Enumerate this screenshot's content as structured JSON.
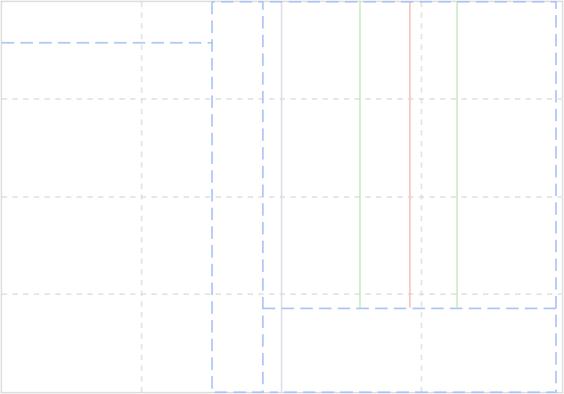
{
  "canvas": {
    "background": "#ffffff",
    "frame_color": "#d9d9d9"
  },
  "colors": {
    "grid": "#d5d5d5",
    "divider": "#d3dbe6",
    "region_outline": "#a9c4f5",
    "guide_green": "#bfe8b8",
    "guide_red": "#f3b9ad"
  },
  "labels": {}
}
